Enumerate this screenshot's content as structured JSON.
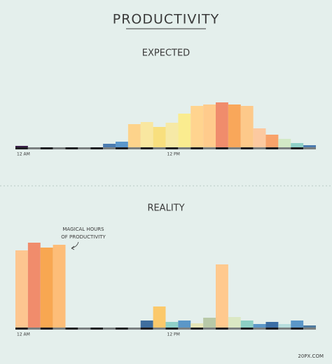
{
  "title": "PRODUCTIVITY",
  "credit": "20PX.COM",
  "chart_data": [
    {
      "type": "bar",
      "title": "EXPECTED",
      "categories": [
        "12 AM",
        null,
        null,
        null,
        null,
        null,
        null,
        null,
        null,
        null,
        null,
        null,
        "12 PM",
        null,
        null,
        null,
        null,
        null,
        null,
        null,
        null,
        null,
        null,
        null
      ],
      "values": [
        2,
        0,
        0,
        0,
        0,
        0,
        0,
        5,
        8,
        33,
        36,
        29,
        35,
        48,
        59,
        61,
        64,
        61,
        59,
        27,
        18,
        12,
        6,
        3
      ],
      "colors": [
        "#3b1f4a",
        "#5b6e8a",
        "#5b6e8a",
        "#5b6e8a",
        "#5b6e8a",
        "#5b6e8a",
        "#5b6e8a",
        "#4b7bb0",
        "#5b97cc",
        "#fdd38b",
        "#f9e7a0",
        "#f8df7e",
        "#f6e9a6",
        "#faec8f",
        "#ffd48f",
        "#ffcb8c",
        "#f08c6c",
        "#f9a75a",
        "#fdc98a",
        "#fcc9a0",
        "#f8a26a",
        "#d3e9c6",
        "#8fd0c8",
        "#4b7bb0"
      ]
    },
    {
      "type": "bar",
      "title": "REALITY",
      "categories": [
        "12 AM",
        null,
        null,
        null,
        null,
        null,
        null,
        null,
        null,
        null,
        null,
        null,
        "12 PM",
        null,
        null,
        null,
        null,
        null,
        null,
        null,
        null,
        null,
        null,
        null
      ],
      "values": [
        110,
        121,
        114,
        118,
        0,
        0,
        0,
        0,
        0,
        0,
        10,
        30,
        8,
        10,
        6,
        14,
        90,
        15,
        10,
        5,
        8,
        5,
        10,
        3
      ],
      "colors": [
        "#fdc690",
        "#f08c6c",
        "#f8a751",
        "#fdbd78",
        "#5b6e8a",
        "#5b6e8a",
        "#5b6e8a",
        "#5b6e8a",
        "#5b6e8a",
        "#5b6e8a",
        "#3f6e9f",
        "#fbc96b",
        "#8fd0c8",
        "#5b97c8",
        "#e6e6b8",
        "#b8c9a8",
        "#ffc98e",
        "#dbe8c4",
        "#8ccfc4",
        "#5b97c8",
        "#3b6ea5",
        "#b8dede",
        "#5b97c8",
        "#4e7aa0"
      ],
      "annotation": [
        "MAGICAL HOURS",
        "OF PRODUCTIVITY"
      ]
    }
  ]
}
